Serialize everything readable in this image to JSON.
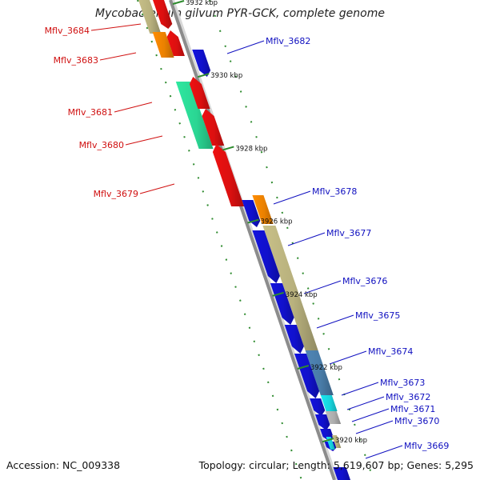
{
  "title": "Mycobacterium gilvum PYR-GCK, complete genome",
  "footer": {
    "accession": "Accession: NC_009338",
    "summary": "Topology: circular; Length: 5,619,607 bp; Genes: 5,295"
  },
  "colors": {
    "backbone": "#8c8c8c",
    "tick": "#2e8b2e",
    "forward_label": "#d01010",
    "reverse_label": "#1010c0",
    "red": "#ee1111",
    "orange": "#ff8c00",
    "teal": "#2ee8a0",
    "blue": "#1212dd",
    "olive": "#c8c088",
    "steel": "#4f86b6",
    "cyan": "#19e6f0",
    "grey": "#bdbdbd"
  },
  "axis": {
    "unit": "kbp",
    "ticks": [
      {
        "kbp": 3932,
        "label": "3932 kbp"
      },
      {
        "kbp": 3930,
        "label": "3930 kbp"
      },
      {
        "kbp": 3928,
        "label": "3928 kbp"
      },
      {
        "kbp": 3926,
        "label": "3926 kbp"
      },
      {
        "kbp": 3924,
        "label": "3924 kbp"
      },
      {
        "kbp": 3922,
        "label": "3922 kbp"
      },
      {
        "kbp": 3920,
        "label": "3920 kbp"
      }
    ]
  },
  "genes": [
    {
      "label": "Mflv_3684",
      "strand": "forward"
    },
    {
      "label": "Mflv_3683",
      "strand": "forward"
    },
    {
      "label": "Mflv_3681",
      "strand": "forward"
    },
    {
      "label": "Mflv_3680",
      "strand": "forward"
    },
    {
      "label": "Mflv_3679",
      "strand": "forward"
    },
    {
      "label": "Mflv_3682",
      "strand": "reverse"
    },
    {
      "label": "Mflv_3678",
      "strand": "reverse"
    },
    {
      "label": "Mflv_3677",
      "strand": "reverse"
    },
    {
      "label": "Mflv_3676",
      "strand": "reverse"
    },
    {
      "label": "Mflv_3675",
      "strand": "reverse"
    },
    {
      "label": "Mflv_3674",
      "strand": "reverse"
    },
    {
      "label": "Mflv_3673",
      "strand": "reverse"
    },
    {
      "label": "Mflv_3672",
      "strand": "reverse"
    },
    {
      "label": "Mflv_3671",
      "strand": "reverse"
    },
    {
      "label": "Mflv_3670",
      "strand": "reverse"
    },
    {
      "label": "Mflv_3669",
      "strand": "reverse"
    }
  ]
}
